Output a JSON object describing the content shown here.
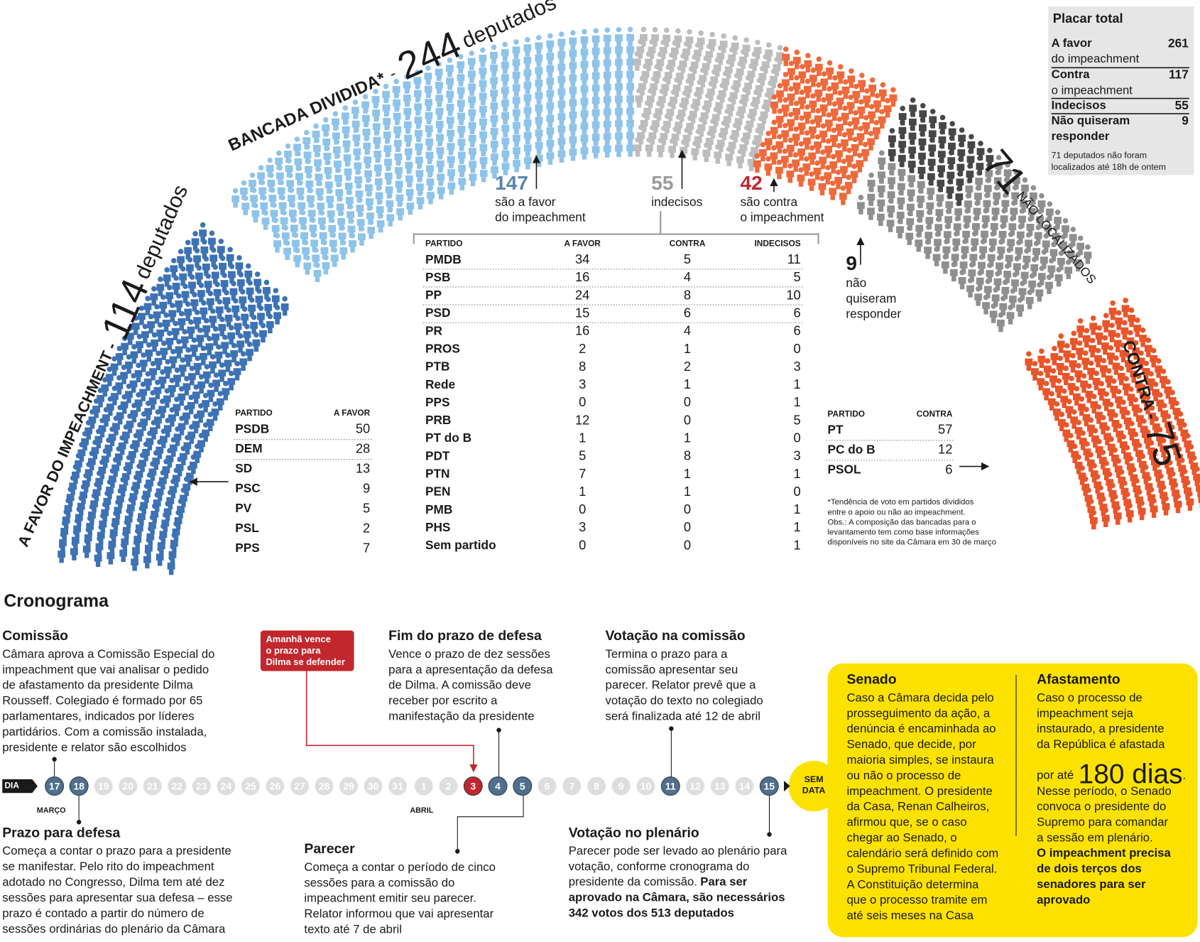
{
  "hemicycle": {
    "divided": {
      "label": "BANCADA DIVIDIDA*",
      "dash": "-",
      "count": 244,
      "unit": "deputados"
    },
    "favor": {
      "label": "A FAVOR DO IMPEACHMENT -",
      "count": 114,
      "unit": "deputados"
    },
    "not_located": {
      "count": 71,
      "label": "NÃO LOCALIZADOS"
    },
    "contra": {
      "label": "CONTRA -",
      "count": 75
    },
    "divided_favor": {
      "count": 147,
      "lines": [
        "são a favor",
        "do impeachment"
      ]
    },
    "divided_undecided": {
      "count": 55,
      "lines": [
        "indecisos"
      ]
    },
    "divided_contra": {
      "count": 42,
      "lines": [
        "são contra",
        "o impeachment"
      ]
    },
    "no_answer": {
      "count": 9,
      "lines": [
        "não",
        "quiseram",
        "responder"
      ]
    }
  },
  "scoreboard": {
    "title": "Placar total",
    "rows": [
      {
        "label": [
          [
            {
              "bold": "A favor"
            }
          ],
          [
            {
              "normal": "do impeachment"
            }
          ]
        ],
        "value": 261
      },
      {
        "label": [
          [
            {
              "bold": "Contra"
            }
          ],
          [
            {
              "normal": "o impeachment"
            }
          ]
        ],
        "value": 117
      },
      {
        "label": [
          [
            {
              "bold": "Indecisos"
            }
          ]
        ],
        "value": 55
      },
      {
        "label": [
          [
            {
              "bold": "Não quiseram"
            }
          ],
          [
            {
              "bold": "responder"
            }
          ]
        ],
        "value": 9
      }
    ],
    "note": [
      "71 deputados não foram",
      "localizados até 18h de ontem"
    ]
  },
  "divided_table": {
    "header": [
      "PARTIDO",
      "A FAVOR",
      "CONTRA",
      "INDECISOS"
    ],
    "rows": [
      [
        "PMDB",
        34,
        5,
        11
      ],
      [
        "PSB",
        16,
        4,
        5
      ],
      [
        "PP",
        24,
        8,
        10
      ],
      [
        "PSD",
        15,
        6,
        6
      ],
      [
        "PR",
        16,
        4,
        6
      ],
      [
        "PROS",
        2,
        1,
        0
      ],
      [
        "PTB",
        8,
        2,
        3
      ],
      [
        "Rede",
        3,
        1,
        1
      ],
      [
        "PPS",
        0,
        0,
        1
      ],
      [
        "PRB",
        12,
        0,
        5
      ],
      [
        "PT do B",
        1,
        1,
        0
      ],
      [
        "PDT",
        5,
        8,
        3
      ],
      [
        "PTN",
        7,
        1,
        1
      ],
      [
        "PEN",
        1,
        1,
        0
      ],
      [
        "PMB",
        0,
        0,
        1
      ],
      [
        "PHS",
        3,
        0,
        1
      ],
      [
        "Sem partido",
        0,
        0,
        1
      ]
    ]
  },
  "favor_table": {
    "header": [
      "PARTIDO",
      "A FAVOR"
    ],
    "rows": [
      [
        "PSDB",
        50
      ],
      [
        "DEM",
        28
      ],
      [
        "SD",
        13
      ],
      [
        "PSC",
        9
      ],
      [
        "PV",
        5
      ],
      [
        "PSL",
        2
      ],
      [
        "PPS",
        7
      ]
    ]
  },
  "contra_table": {
    "header": [
      "PARTIDO",
      "CONTRA"
    ],
    "rows": [
      [
        "PT",
        57
      ],
      [
        "PC do B",
        12
      ],
      [
        "PSOL",
        6
      ]
    ]
  },
  "footnote": [
    "*Tendência de voto em partidos divididos",
    "entre o apoio ou não ao impeachment.",
    "Obs.: A composição das bancadas para o",
    "levantamento tem como base informações",
    "disponíveis no site da Câmara em 30 de março"
  ],
  "timeline": {
    "title": "Cronograma",
    "dia": "DIA",
    "days": [
      17,
      18,
      19,
      20,
      21,
      22,
      23,
      24,
      25,
      26,
      27,
      28,
      29,
      30,
      31,
      1,
      2,
      3,
      4,
      5,
      6,
      7,
      8,
      9,
      10,
      11,
      12,
      13,
      14,
      15
    ],
    "months": [
      "MARÇO",
      "ABRIL"
    ],
    "no_date": [
      "SEM",
      "DATA"
    ],
    "callout": [
      "Amanhã vence",
      "o prazo para",
      "Dilma se defender"
    ],
    "events": [
      {
        "title": "Comissão",
        "lines": [
          "Câmara aprova a Comissão Especial do",
          "impeachment que vai analisar o pedido",
          "de afastamento da presidente Dilma",
          "Rousseff. Colegiado é formado por 65",
          "parlamentares, indicados por líderes",
          "partidários. Com a comissão instalada,",
          "presidente e relator são escolhidos"
        ]
      },
      {
        "title": "Prazo para defesa",
        "lines": [
          "Começa a contar o prazo para a presidente",
          "se manifestar. Pelo rito do impeachment",
          "adotado no Congresso, Dilma tem até dez",
          "sessões para apresentar sua defesa – esse",
          "prazo é contado a partir do número de",
          "sessões ordinárias do plenário da Câmara"
        ]
      },
      {
        "title": "Fim do prazo de defesa",
        "lines": [
          "Vence o prazo de dez sessões",
          "para a apresentação da defesa",
          "de Dilma. A comissão deve",
          "receber por escrito a",
          "manifestação da presidente"
        ]
      },
      {
        "title": "Parecer",
        "lines": [
          "Começa a contar o período de cinco",
          "sessões para a comissão do",
          "impeachment emitir seu parecer.",
          "Relator informou que vai apresentar",
          "texto até 7 de abril"
        ]
      },
      {
        "title": "Votação na comissão",
        "lines": [
          "Termina o prazo para a",
          "comissão apresentar seu",
          "parecer. Relator prevê que a",
          "votação do texto no colegiado",
          "será finalizada até 12 de abril"
        ]
      },
      {
        "title": "Votação no plenário",
        "lines": [
          "Parecer pode ser levado ao plenário para",
          "votação, conforme cronograma do",
          [
            {
              "normal": "presidente da comissão."
            },
            {
              "bold": "Para ser"
            }
          ],
          [
            {
              "bold": "aprovado na Câmara, são necessários"
            }
          ],
          [
            {
              "bold": "342 votos dos 513 deputados"
            }
          ]
        ]
      },
      {
        "title": "Senado",
        "lines": [
          "Caso a Câmara decida pelo",
          "prosseguimento da ação, a",
          "denúncia é encaminhada ao",
          "Senado, que decide, por",
          "maioria simples, se instaura",
          "ou não o processo de",
          "impeachment. O presidente",
          "da Casa, Renan Calheiros,",
          "afirmou que, se o caso",
          "chegar ao Senado, o",
          "calendário será definido com",
          "o Supremo Tribunal Federal.",
          "A Constituição determina",
          "que o processo tramite em",
          "até seis meses na Casa"
        ]
      },
      {
        "title": "Afastamento",
        "lines": [
          "Caso o processo de",
          "impeachment seja",
          "instaurado, a presidente",
          "da República é afastada",
          [
            {
              "normal": "por até"
            },
            {
              "big": "180 dias"
            },
            {
              "normal": "."
            }
          ],
          "Nesse período, o Senado",
          "convoca o presidente do",
          "Supremo para comandar",
          "a sessão em plenário.",
          [
            {
              "bold": "O impeachment precisa"
            }
          ],
          [
            {
              "bold": "de dois terços dos"
            }
          ],
          [
            {
              "bold": "senadores para ser"
            }
          ],
          [
            {
              "bold": "aprovado"
            }
          ]
        ]
      }
    ]
  }
}
